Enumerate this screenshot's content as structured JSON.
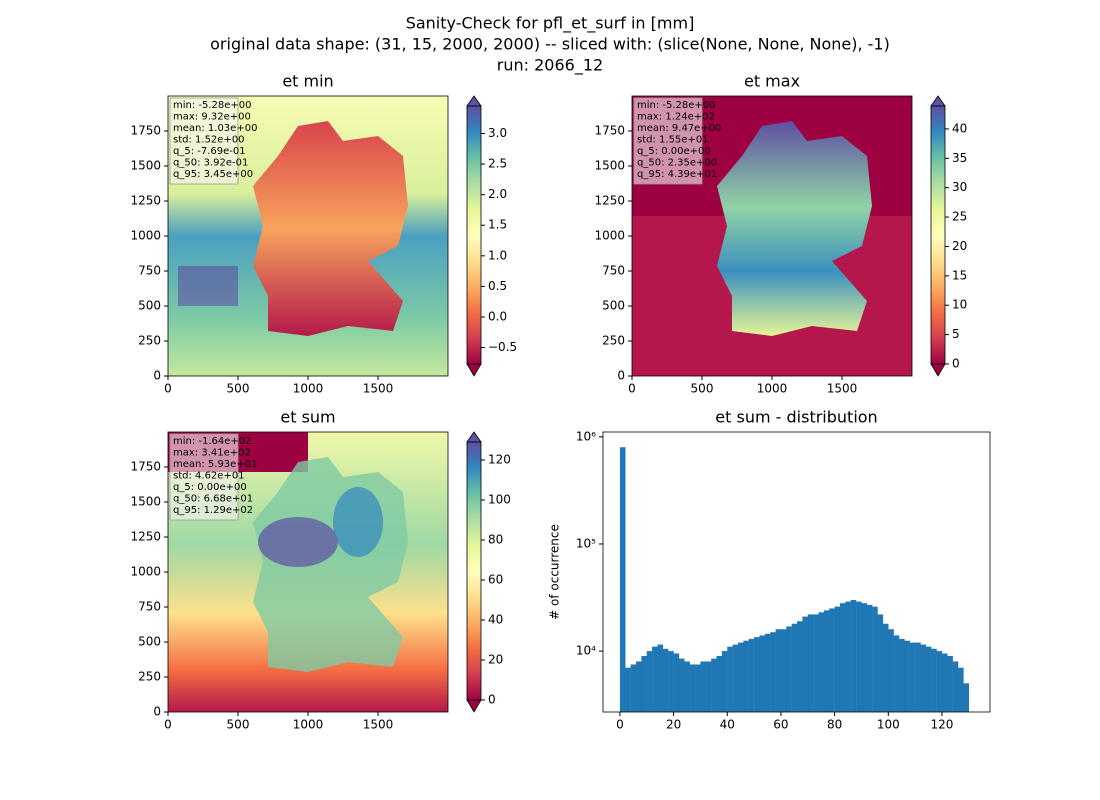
{
  "figure": {
    "title_lines": [
      "Sanity-Check for pfl_et_surf in [mm]",
      "original data shape: (31, 15, 2000, 2000) -- sliced with: (slice(None, None, None), -1)",
      "run: 2066_12"
    ]
  },
  "chart_data": [
    {
      "type": "heatmap",
      "title": "et min",
      "xlim": [
        0,
        2000
      ],
      "ylim": [
        0,
        2000
      ],
      "xticks": [
        0,
        500,
        1000,
        1500
      ],
      "yticks": [
        0,
        250,
        500,
        750,
        1000,
        1250,
        1500,
        1750
      ],
      "clim": [
        -0.769,
        3.45
      ],
      "cticks": [
        {
          "value": -0.5,
          "label": "−0.5"
        },
        {
          "value": 0.0,
          "label": "0.0"
        },
        {
          "value": 0.5,
          "label": "0.5"
        },
        {
          "value": 1.0,
          "label": "1.0"
        },
        {
          "value": 1.5,
          "label": "1.5"
        },
        {
          "value": 2.0,
          "label": "2.0"
        },
        {
          "value": 2.5,
          "label": "2.5"
        },
        {
          "value": 3.0,
          "label": "3.0"
        }
      ],
      "stats": [
        "min: -5.28e+00",
        "max: 9.32e+00",
        "mean: 1.03e+00",
        "std: 1.52e+00",
        "q_5: -7.69e-01",
        "q_50: 3.92e-01",
        "q_95: 3.45e+00"
      ]
    },
    {
      "type": "heatmap",
      "title": "et max",
      "xlim": [
        0,
        2000
      ],
      "ylim": [
        0,
        2000
      ],
      "xticks": [
        0,
        500,
        1000,
        1500
      ],
      "yticks": [
        0,
        250,
        500,
        750,
        1000,
        1250,
        1500,
        1750
      ],
      "clim": [
        0,
        43.9
      ],
      "cticks": [
        0,
        5,
        10,
        15,
        20,
        25,
        30,
        35,
        40
      ],
      "stats": [
        "min: -5.28e+00",
        "max: 1.24e+02",
        "mean: 9.47e+00",
        "std: 1.55e+01",
        "q_5: 0.00e+00",
        "q_50: 2.35e+00",
        "q_95: 4.39e+01"
      ]
    },
    {
      "type": "heatmap",
      "title": "et sum",
      "xlim": [
        0,
        2000
      ],
      "ylim": [
        0,
        2000
      ],
      "xticks": [
        0,
        500,
        1000,
        1500
      ],
      "yticks": [
        0,
        250,
        500,
        750,
        1000,
        1250,
        1500,
        1750
      ],
      "clim": [
        0,
        129
      ],
      "cticks": [
        0,
        20,
        40,
        60,
        80,
        100,
        120
      ],
      "stats": [
        "min: -1.64e+02",
        "max: 3.41e+02",
        "mean: 5.93e+01",
        "std: 4.62e+01",
        "q_5: 0.00e+00",
        "q_50: 6.68e+01",
        "q_95: 1.29e+02"
      ]
    },
    {
      "type": "histogram",
      "title": "et sum - distribution",
      "ylabel": "# of occurrence",
      "color": "#1f77b4",
      "log_y": true,
      "xlim": [
        -6.3,
        137.9
      ],
      "ylim": [
        2700,
        1110000
      ],
      "xticks": [
        0,
        20,
        40,
        60,
        80,
        100,
        120
      ],
      "yticks": [
        {
          "value": 10000,
          "label": "10⁴"
        },
        {
          "value": 100000,
          "label": "10⁵"
        },
        {
          "value": 1000000,
          "label": "10⁶"
        }
      ],
      "bins": [
        0,
        2,
        4,
        6,
        8,
        10,
        12,
        14,
        16,
        18,
        20,
        22,
        24,
        26,
        28,
        30,
        32,
        34,
        36,
        38,
        40,
        42,
        44,
        46,
        48,
        50,
        52,
        54,
        56,
        58,
        60,
        62,
        64,
        66,
        68,
        70,
        72,
        74,
        76,
        78,
        80,
        82,
        84,
        86,
        88,
        90,
        92,
        94,
        96,
        98,
        100,
        102,
        104,
        106,
        108,
        110,
        112,
        114,
        116,
        118,
        120,
        122,
        124,
        126,
        128,
        130
      ],
      "counts": [
        800000,
        7000,
        7500,
        8000,
        9000,
        10000,
        11000,
        11500,
        10500,
        10000,
        9500,
        8500,
        8000,
        7500,
        7500,
        8000,
        8000,
        8500,
        9000,
        10000,
        11000,
        11500,
        12000,
        12500,
        13000,
        13500,
        14000,
        14500,
        15000,
        16000,
        16000,
        17000,
        18000,
        19000,
        21000,
        22000,
        22000,
        23000,
        24000,
        25000,
        26000,
        28000,
        29000,
        30000,
        29000,
        28000,
        27000,
        26000,
        22000,
        18000,
        16000,
        14000,
        13000,
        12500,
        12000,
        12000,
        11500,
        11000,
        10500,
        10000,
        9500,
        9000,
        8000,
        7000,
        5000
      ]
    }
  ]
}
